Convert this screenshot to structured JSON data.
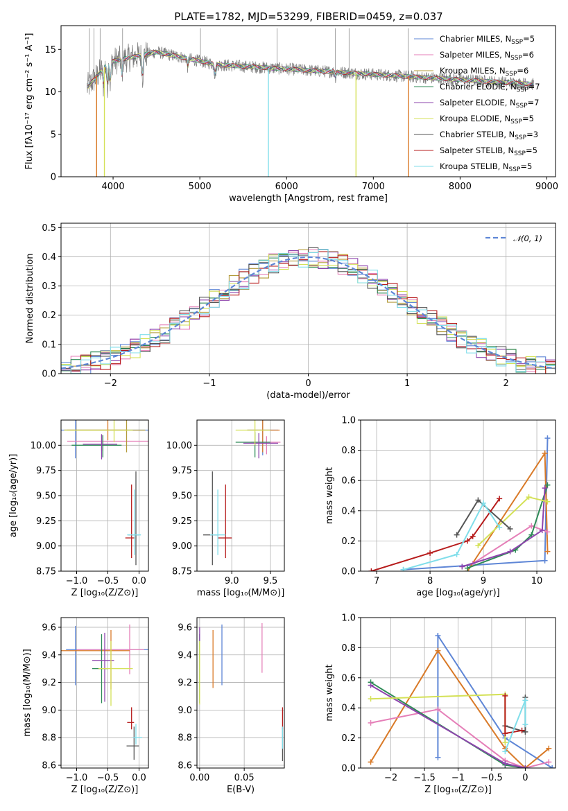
{
  "figure": {
    "title": "PLATE=1782, MJD=53299, FIBERID=0459, z=0.037"
  },
  "chart_data": [
    {
      "type": "line",
      "id": "spectrum",
      "xlabel": "wavelength [Angstrom, rest frame]",
      "ylabel": "Flux [fλ10⁻¹⁷ erg cm⁻² s⁻¹ A⁻¹]",
      "xlim": [
        3400,
        9100
      ],
      "ylim": [
        0,
        17.8
      ],
      "xticks": [
        4000,
        5000,
        6000,
        7000,
        8000,
        9000
      ],
      "yticks": [
        0,
        5,
        10,
        15
      ],
      "grid": false,
      "legend_position": "top-right",
      "wavelength_range": [
        3700,
        8850
      ],
      "legend": [
        {
          "label": "Chabrier MILES, N",
          "sub": "SSP",
          "n": "=5",
          "color": "#5e86d6"
        },
        {
          "label": "Salpeter MILES, N",
          "sub": "SSP",
          "n": "=6",
          "color": "#e57fb8"
        },
        {
          "label": "Kroupa MILES, N",
          "sub": "SSP",
          "n": "=6",
          "color": "#b39b3a"
        },
        {
          "label": "Chabrier ELODIE, N",
          "sub": "SSP",
          "n": "=7",
          "color": "#2e8b57"
        },
        {
          "label": "Salpeter ELODIE, N",
          "sub": "SSP",
          "n": "=7",
          "color": "#8e44ad"
        },
        {
          "label": "Kroupa ELODIE, N",
          "sub": "SSP",
          "n": "=5",
          "color": "#d4e157"
        },
        {
          "label": "Chabrier STELIB, N",
          "sub": "SSP",
          "n": "=3",
          "color": "#555555"
        },
        {
          "label": "Salpeter STELIB, N",
          "sub": "SSP",
          "n": "=5",
          "color": "#b71c1c"
        },
        {
          "label": "Kroupa STELIB, N",
          "sub": "SSP",
          "n": "=5",
          "color": "#80deea"
        }
      ]
    },
    {
      "type": "line",
      "id": "residuals",
      "xlabel": "(data-model)/error",
      "ylabel": "Normed distribution",
      "xlim": [
        -2.5,
        2.5
      ],
      "ylim": [
        0,
        0.515
      ],
      "xticks": [
        -2,
        -1,
        0,
        1,
        2
      ],
      "yticks": [
        0.0,
        0.1,
        0.2,
        0.3,
        0.4,
        0.5
      ],
      "grid": true,
      "legend_position": "top-right",
      "legend": [
        {
          "label": "𝒩(0, 1)",
          "color": "#5e86d6",
          "style": "dashed"
        }
      ],
      "bin_width": 0.1,
      "series_colors": [
        "#5e86d6",
        "#e57fb8",
        "#b39b3a",
        "#2e8b57",
        "#8e44ad",
        "#d4e157",
        "#555555",
        "#b71c1c",
        "#80deea"
      ]
    },
    {
      "type": "scatter",
      "id": "age_vs_Z",
      "xlabel": "Z [log₁₀(Z/Z⊙)]",
      "ylabel": "age  [log₁₀(age/yr)]",
      "xlim": [
        -1.25,
        0.15
      ],
      "ylim": [
        8.75,
        10.25
      ],
      "xticks": [
        -1.0,
        -0.5,
        0.0
      ],
      "yticks": [
        8.75,
        9.0,
        9.25,
        9.5,
        9.75,
        10.0
      ],
      "grid": true,
      "points": [
        {
          "x": -1.02,
          "y": 10.15,
          "xerr": [
            0.28,
            1.2
          ],
          "yerr": [
            0.28,
            0.1
          ],
          "color": "#5e86d6"
        },
        {
          "x": -0.6,
          "y": 10.04,
          "xerr": [
            0.55,
            0.75
          ],
          "yerr": [
            0.1,
            0.06
          ],
          "color": "#e57fb8"
        },
        {
          "x": -0.2,
          "y": 10.15,
          "xerr": [
            0.95,
            0.3
          ],
          "yerr": [
            0.22,
            0.1
          ],
          "color": "#b39b3a"
        },
        {
          "x": -0.5,
          "y": 10.15,
          "xerr": [
            0.7,
            0.3
          ],
          "yerr": [
            0.1,
            0.1
          ],
          "color": "#d97a28"
        },
        {
          "x": -0.58,
          "y": 10.0,
          "xerr": [
            0.5,
            0.3
          ],
          "yerr": [
            0.12,
            0.1
          ],
          "color": "#2e8b57"
        },
        {
          "x": -0.6,
          "y": 10.01,
          "xerr": [
            0.3,
            0.25
          ],
          "yerr": [
            0.15,
            0.1
          ],
          "color": "#8e44ad"
        },
        {
          "x": -0.4,
          "y": 10.15,
          "xerr": [
            0.8,
            0.3
          ],
          "yerr": [
            0.12,
            0.1
          ],
          "color": "#d4e157"
        },
        {
          "x": -0.05,
          "y": 9.11,
          "xerr": [
            0.12,
            0.05
          ],
          "yerr": [
            0.3,
            0.63
          ],
          "color": "#555555"
        },
        {
          "x": -0.12,
          "y": 9.08,
          "xerr": [
            0.1,
            0.05
          ],
          "yerr": [
            0.2,
            0.53
          ],
          "color": "#b71c1c"
        },
        {
          "x": -0.07,
          "y": 9.11,
          "xerr": [
            0.12,
            0.1
          ],
          "yerr": [
            0.2,
            0.45
          ],
          "color": "#80deea"
        }
      ]
    },
    {
      "type": "scatter",
      "id": "age_vs_mass",
      "xlabel": "mass [log₁₀(M/M⊙)]",
      "ylabel": "",
      "xlim": [
        8.55,
        9.68
      ],
      "ylim": [
        8.75,
        10.25
      ],
      "xticks": [
        9.0,
        9.5
      ],
      "yticks": [
        8.75,
        9.0,
        9.25,
        9.5,
        9.75,
        10.0
      ],
      "grid": true,
      "points": [
        {
          "x": 9.4,
          "y": 10.15,
          "xerr": [
            0.2,
            0.2
          ],
          "yerr": [
            0.25,
            0.1
          ],
          "color": "#5e86d6"
        },
        {
          "x": 9.45,
          "y": 10.03,
          "xerr": [
            0.2,
            0.18
          ],
          "yerr": [
            0.12,
            0.06
          ],
          "color": "#e57fb8"
        },
        {
          "x": 9.4,
          "y": 10.15,
          "xerr": [
            0.2,
            0.22
          ],
          "yerr": [
            0.22,
            0.1
          ],
          "color": "#d97a28"
        },
        {
          "x": 9.3,
          "y": 10.03,
          "xerr": [
            0.25,
            0.2
          ],
          "yerr": [
            0.15,
            0.1
          ],
          "color": "#2e8b57"
        },
        {
          "x": 9.35,
          "y": 10.02,
          "xerr": [
            0.2,
            0.25
          ],
          "yerr": [
            0.15,
            0.1
          ],
          "color": "#8e44ad"
        },
        {
          "x": 9.3,
          "y": 10.15,
          "xerr": [
            0.25,
            0.2
          ],
          "yerr": [
            0.15,
            0.1
          ],
          "color": "#d4e157"
        },
        {
          "x": 8.75,
          "y": 9.11,
          "xerr": [
            0.12,
            0.08
          ],
          "yerr": [
            0.3,
            0.63
          ],
          "color": "#555555"
        },
        {
          "x": 8.92,
          "y": 9.08,
          "xerr": [
            0.1,
            0.08
          ],
          "yerr": [
            0.2,
            0.53
          ],
          "color": "#b71c1c"
        },
        {
          "x": 8.82,
          "y": 9.11,
          "xerr": [
            0.1,
            0.1
          ],
          "yerr": [
            0.2,
            0.45
          ],
          "color": "#80deea"
        }
      ]
    },
    {
      "type": "line",
      "id": "massweight_vs_age",
      "xlabel": "age  [log₁₀(age/yr)]",
      "ylabel": "mass weight",
      "xlim": [
        6.7,
        10.35
      ],
      "ylim": [
        0,
        1.0
      ],
      "xticks": [
        7,
        8,
        9,
        10
      ],
      "yticks": [
        0.0,
        0.2,
        0.4,
        0.6,
        0.8,
        1.0
      ],
      "grid": true,
      "series": [
        {
          "color": "#5e86d6",
          "x": [
            7.5,
            10.15,
            10.2
          ],
          "y": [
            0.01,
            0.07,
            0.88
          ]
        },
        {
          "color": "#d97a28",
          "x": [
            8.7,
            10.15,
            10.2
          ],
          "y": [
            0.0,
            0.78,
            0.13
          ]
        },
        {
          "color": "#e57fb8",
          "x": [
            8.8,
            9.9,
            10.2
          ],
          "y": [
            0.05,
            0.3,
            0.26
          ]
        },
        {
          "color": "#2e8b57",
          "x": [
            8.7,
            9.6,
            9.9,
            10.2
          ],
          "y": [
            0.02,
            0.14,
            0.24,
            0.57
          ]
        },
        {
          "color": "#8e44ad",
          "x": [
            8.6,
            9.5,
            10.1,
            10.15
          ],
          "y": [
            0.03,
            0.13,
            0.27,
            0.55
          ]
        },
        {
          "color": "#d4e157",
          "x": [
            8.9,
            9.85,
            10.2
          ],
          "y": [
            0.17,
            0.49,
            0.46
          ]
        },
        {
          "color": "#555555",
          "x": [
            8.5,
            8.9,
            9.5
          ],
          "y": [
            0.24,
            0.47,
            0.28
          ]
        },
        {
          "color": "#b71c1c",
          "x": [
            6.9,
            8.0,
            8.7,
            8.8,
            9.3
          ],
          "y": [
            0.0,
            0.12,
            0.2,
            0.23,
            0.48
          ]
        },
        {
          "color": "#80deea",
          "x": [
            7.5,
            8.5,
            9.0,
            9.3
          ],
          "y": [
            0.01,
            0.11,
            0.45,
            0.29
          ]
        }
      ]
    },
    {
      "type": "scatter",
      "id": "mass_vs_Z",
      "xlabel": "Z [log₁₀(Z/Z⊙)]",
      "ylabel": "mass [log₁₀(M/M⊙)]",
      "xlim": [
        -1.25,
        0.15
      ],
      "ylim": [
        8.58,
        9.67
      ],
      "xticks": [
        -1.0,
        -0.5,
        0.0
      ],
      "yticks": [
        8.6,
        8.8,
        9.0,
        9.2,
        9.4,
        9.6
      ],
      "grid": true,
      "points": [
        {
          "x": -1.02,
          "y": 9.44,
          "xerr": [
            0.15,
            1.2
          ],
          "yerr": [
            0.26,
            0.17
          ],
          "color": "#5e86d6"
        },
        {
          "x": -0.15,
          "y": 9.44,
          "xerr": [
            0.85,
            0.23
          ],
          "yerr": [
            0.18,
            0.18
          ],
          "color": "#e57fb8"
        },
        {
          "x": -0.45,
          "y": 9.43,
          "xerr": [
            0.8,
            0.3
          ],
          "yerr": [
            0.28,
            0.15
          ],
          "color": "#d97a28"
        },
        {
          "x": -0.6,
          "y": 9.3,
          "xerr": [
            0.15,
            0.1
          ],
          "yerr": [
            0.25,
            0.25
          ],
          "color": "#2e8b57"
        },
        {
          "x": -0.55,
          "y": 9.36,
          "xerr": [
            0.2,
            0.15
          ],
          "yerr": [
            0.3,
            0.2
          ],
          "color": "#8e44ad"
        },
        {
          "x": -0.45,
          "y": 9.3,
          "xerr": [
            0.2,
            0.35
          ],
          "yerr": [
            0.27,
            0.2
          ],
          "color": "#d4e157"
        },
        {
          "x": -0.08,
          "y": 8.74,
          "xerr": [
            0.12,
            0.08
          ],
          "yerr": [
            0.1,
            0.14
          ],
          "color": "#555555"
        },
        {
          "x": -0.12,
          "y": 8.91,
          "xerr": [
            0.07,
            0.04
          ],
          "yerr": [
            0.05,
            0.11
          ],
          "color": "#b71c1c"
        },
        {
          "x": -0.05,
          "y": 8.8,
          "xerr": [
            0.05,
            0.1
          ],
          "yerr": [
            0.05,
            0.1
          ],
          "color": "#80deea"
        }
      ]
    },
    {
      "type": "scatter",
      "id": "mass_vs_EBV",
      "xlabel": "E(B-V)",
      "ylabel": "",
      "xlim": [
        -0.003,
        0.095
      ],
      "ylim": [
        8.58,
        9.67
      ],
      "xticks": [
        0.0,
        0.05
      ],
      "yticks": [
        8.6,
        8.8,
        9.0,
        9.2,
        9.4,
        9.6
      ],
      "grid": true,
      "points": [
        {
          "x": 0.025,
          "y": 9.4,
          "yerr": [
            0.22,
            0.22
          ],
          "color": "#5e86d6"
        },
        {
          "x": 0.07,
          "y": 9.45,
          "yerr": [
            0.18,
            0.18
          ],
          "color": "#e57fb8"
        },
        {
          "x": 0.015,
          "y": 9.37,
          "yerr": [
            0.21,
            0.21
          ],
          "color": "#d97a28"
        },
        {
          "x": 0.0,
          "y": 9.3,
          "yerr": [
            0.25,
            0.25
          ],
          "color": "#2e8b57"
        },
        {
          "x": 0.0,
          "y": 9.55,
          "yerr": [
            0.05,
            0.05
          ],
          "color": "#8e44ad"
        },
        {
          "x": 0.0,
          "y": 9.27,
          "yerr": [
            0.23,
            0.23
          ],
          "color": "#d4e157"
        },
        {
          "x": 0.093,
          "y": 8.75,
          "yerr": [
            0.12,
            0.12
          ],
          "color": "#555555"
        },
        {
          "x": 0.093,
          "y": 8.94,
          "yerr": [
            0.08,
            0.08
          ],
          "color": "#b71c1c"
        },
        {
          "x": 0.093,
          "y": 8.8,
          "yerr": [
            0.08,
            0.08
          ],
          "color": "#80deea"
        }
      ]
    },
    {
      "type": "line",
      "id": "massweight_vs_Z",
      "xlabel": "Z [log₁₀(Z/Z⊙)]",
      "ylabel": "mass weight",
      "xlim": [
        -2.45,
        0.45
      ],
      "ylim": [
        0,
        1.0
      ],
      "xticks": [
        -2.0,
        -1.5,
        -1.0,
        -0.5,
        0.0
      ],
      "yticks": [
        0.0,
        0.2,
        0.4,
        0.6,
        0.8,
        1.0
      ],
      "grid": true,
      "series": [
        {
          "color": "#5e86d6",
          "x": [
            -1.3,
            -1.3,
            -0.3,
            0.4
          ],
          "y": [
            0.07,
            0.88,
            0.2,
            0.0
          ]
        },
        {
          "color": "#d97a28",
          "x": [
            -2.3,
            -1.3,
            -0.3,
            0.0,
            0.35
          ],
          "y": [
            0.04,
            0.78,
            0.13,
            0.0,
            0.13
          ]
        },
        {
          "color": "#e57fb8",
          "x": [
            -2.3,
            -1.3,
            -0.3,
            0.0,
            0.35
          ],
          "y": [
            0.3,
            0.39,
            0.05,
            0.0,
            0.04
          ]
        },
        {
          "color": "#2e8b57",
          "x": [
            -2.3,
            -0.3,
            0.0
          ],
          "y": [
            0.57,
            0.02,
            0.0
          ]
        },
        {
          "color": "#8e44ad",
          "x": [
            -2.3,
            -0.3,
            0.0
          ],
          "y": [
            0.55,
            0.03,
            0.0
          ]
        },
        {
          "color": "#d4e157",
          "x": [
            -2.3,
            -0.3,
            -0.3
          ],
          "y": [
            0.46,
            0.49,
            0.17
          ]
        },
        {
          "color": "#555555",
          "x": [
            -0.3,
            0.0,
            0.0
          ],
          "y": [
            0.28,
            0.24,
            0.47
          ]
        },
        {
          "color": "#b71c1c",
          "x": [
            -0.3,
            -0.3,
            -0.05
          ],
          "y": [
            0.48,
            0.23,
            0.25
          ]
        },
        {
          "color": "#80deea",
          "x": [
            -0.3,
            0.0,
            0.0
          ],
          "y": [
            0.11,
            0.45,
            0.29
          ]
        }
      ]
    }
  ]
}
